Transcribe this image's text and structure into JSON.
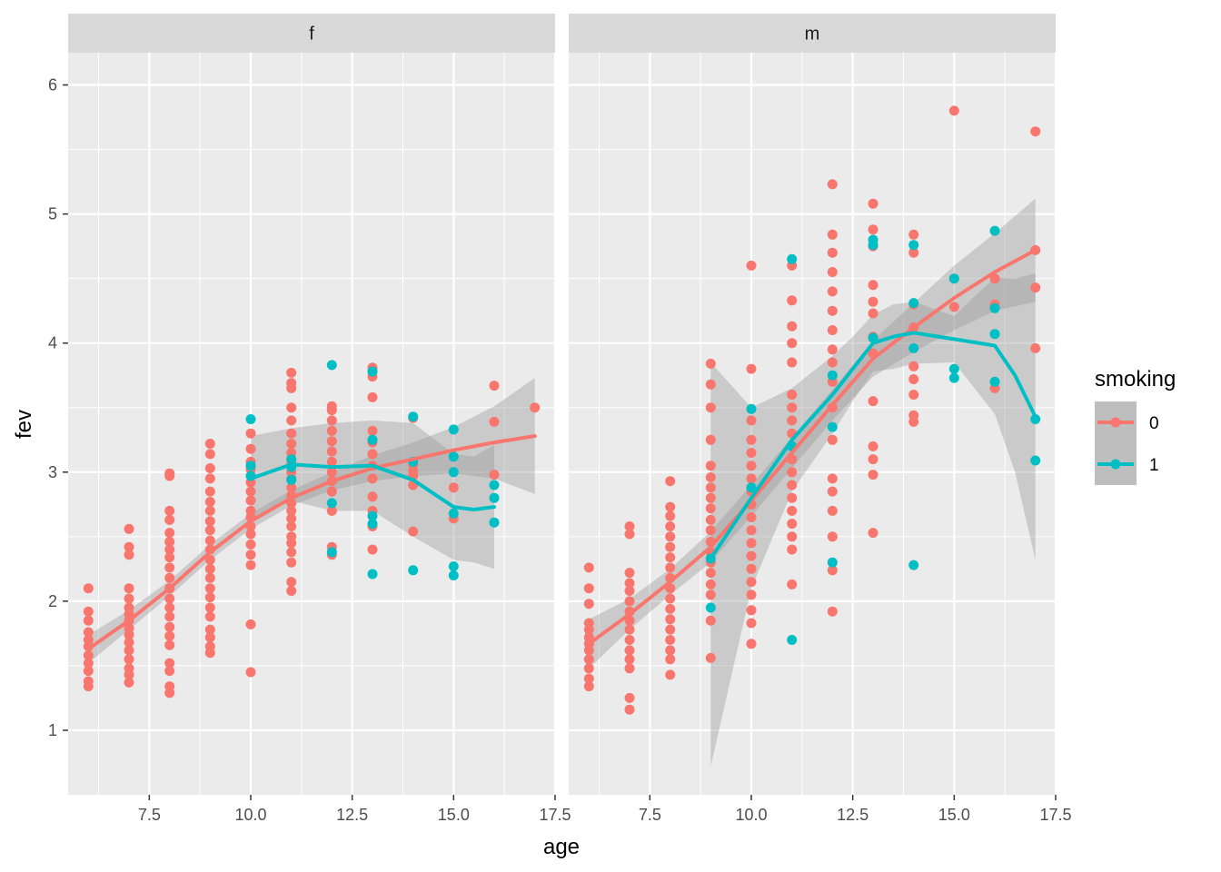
{
  "chart_data": {
    "type": "scatter",
    "overlay": "loess smooth with confidence band",
    "xlabel": "age",
    "ylabel": "fev",
    "xlim": [
      5.5,
      17.5
    ],
    "ylim": [
      0.5,
      6.25
    ],
    "xticks": [
      7.5,
      10.0,
      12.5,
      15.0,
      17.5
    ],
    "xtick_labels": [
      "7.5",
      "10.0",
      "12.5",
      "15.0",
      "17.5"
    ],
    "yticks": [
      1,
      2,
      3,
      4,
      5,
      6
    ],
    "ytick_labels": [
      "1",
      "2",
      "3",
      "4",
      "5",
      "6"
    ],
    "grid": true,
    "legend": {
      "title": "smoking",
      "placement": "right",
      "entries": [
        {
          "label": "0",
          "color": "#F8766D"
        },
        {
          "label": "1",
          "color": "#00BFC4"
        }
      ]
    },
    "series_colors": {
      "0": "#F8766D",
      "1": "#00BFC4"
    },
    "panels": [
      {
        "strip": "f",
        "points": [
          {
            "x": 6,
            "smoking": "0",
            "y": [
              1.34,
              1.38,
              1.46,
              1.52,
              1.58,
              1.65,
              1.7,
              1.76,
              1.85,
              1.92,
              2.1
            ]
          },
          {
            "x": 7,
            "smoking": "0",
            "y": [
              1.37,
              1.43,
              1.48,
              1.55,
              1.62,
              1.68,
              1.74,
              1.79,
              1.85,
              1.9,
              1.95,
              2.02,
              2.1,
              2.36,
              2.42,
              2.56
            ]
          },
          {
            "x": 8,
            "smoking": "0",
            "y": [
              1.29,
              1.34,
              1.46,
              1.52,
              1.66,
              1.73,
              1.8,
              1.88,
              1.95,
              2.02,
              2.1,
              2.18,
              2.26,
              2.34,
              2.4,
              2.46,
              2.53,
              2.63,
              2.7,
              2.97,
              2.99
            ]
          },
          {
            "x": 9,
            "smoking": "0",
            "y": [
              1.6,
              1.65,
              1.72,
              1.78,
              1.88,
              1.95,
              2.03,
              2.1,
              2.18,
              2.25,
              2.32,
              2.4,
              2.47,
              2.55,
              2.62,
              2.7,
              2.77,
              2.85,
              2.95,
              3.03,
              3.14,
              3.22
            ]
          },
          {
            "x": 10,
            "smoking": "0",
            "y": [
              1.45,
              1.82,
              2.28,
              2.36,
              2.44,
              2.52,
              2.58,
              2.65,
              2.7,
              2.78,
              2.85,
              2.92,
              3.02,
              3.08,
              3.18,
              3.3
            ]
          },
          {
            "x": 10,
            "smoking": "1",
            "y": [
              2.97,
              3.05,
              3.41
            ]
          },
          {
            "x": 11,
            "smoking": "0",
            "y": [
              2.08,
              2.15,
              2.3,
              2.38,
              2.45,
              2.5,
              2.58,
              2.64,
              2.7,
              2.76,
              2.82,
              2.88,
              2.95,
              3.0,
              3.08,
              3.15,
              3.22,
              3.3,
              3.4,
              3.5,
              3.65,
              3.69,
              3.77
            ]
          },
          {
            "x": 11,
            "smoking": "1",
            "y": [
              2.94,
              3.04,
              3.1
            ]
          },
          {
            "x": 12,
            "smoking": "0",
            "y": [
              2.36,
              2.42,
              2.7,
              2.85,
              2.93,
              3.0,
              3.08,
              3.16,
              3.24,
              3.32,
              3.4,
              3.48,
              3.51
            ]
          },
          {
            "x": 12,
            "smoking": "1",
            "y": [
              2.38,
              2.76,
              3.83
            ]
          },
          {
            "x": 13,
            "smoking": "0",
            "y": [
              2.4,
              2.58,
              2.7,
              2.81,
              2.95,
              3.05,
              3.14,
              3.23,
              3.32,
              3.58,
              3.74,
              3.81
            ]
          },
          {
            "x": 13,
            "smoking": "1",
            "y": [
              2.21,
              2.6,
              2.66,
              3.25,
              3.78
            ]
          },
          {
            "x": 14,
            "smoking": "0",
            "y": [
              2.54,
              2.9,
              2.97,
              3.01,
              3.06,
              3.42
            ]
          },
          {
            "x": 14,
            "smoking": "1",
            "y": [
              2.24,
              3.08,
              3.43
            ]
          },
          {
            "x": 15,
            "smoking": "0",
            "y": [
              2.64,
              2.88
            ]
          },
          {
            "x": 15,
            "smoking": "1",
            "y": [
              2.2,
              2.27,
              2.68,
              3.0,
              3.12,
              3.33
            ]
          },
          {
            "x": 16,
            "smoking": "0",
            "y": [
              2.98,
              3.39,
              3.67
            ]
          },
          {
            "x": 16,
            "smoking": "1",
            "y": [
              2.61,
              2.8,
              2.9
            ]
          },
          {
            "x": 17,
            "smoking": "0",
            "y": [
              3.5
            ]
          }
        ],
        "smooth": [
          {
            "smoking": "0",
            "x": [
              6,
              7,
              8,
              9,
              10,
              11,
              12,
              13,
              14,
              15,
              16,
              17
            ],
            "y": [
              1.63,
              1.85,
              2.1,
              2.38,
              2.62,
              2.8,
              2.93,
              3.03,
              3.1,
              3.17,
              3.23,
              3.28
            ],
            "lower": [
              1.52,
              1.78,
              2.04,
              2.32,
              2.56,
              2.74,
              2.86,
              2.93,
              2.97,
              2.99,
              2.95,
              2.83
            ],
            "upper": [
              1.74,
              1.93,
              2.16,
              2.44,
              2.68,
              2.86,
              3.0,
              3.13,
              3.23,
              3.35,
              3.51,
              3.73
            ]
          },
          {
            "smoking": "1",
            "x": [
              10,
              11,
              12,
              13,
              14,
              15,
              15.5,
              16
            ],
            "y": [
              2.95,
              3.06,
              3.04,
              3.05,
              2.94,
              2.73,
              2.71,
              2.73
            ],
            "lower": [
              2.62,
              2.78,
              2.7,
              2.7,
              2.5,
              2.32,
              2.3,
              2.25
            ],
            "upper": [
              3.28,
              3.34,
              3.38,
              3.4,
              3.38,
              3.14,
              3.12,
              3.21
            ]
          }
        ]
      },
      {
        "strip": "m",
        "points": [
          {
            "x": 6,
            "smoking": "0",
            "y": [
              1.34,
              1.4,
              1.48,
              1.55,
              1.62,
              1.67,
              1.72,
              1.78,
              1.83,
              1.98,
              2.1,
              2.26
            ]
          },
          {
            "x": 7,
            "smoking": "0",
            "y": [
              1.16,
              1.25,
              1.48,
              1.55,
              1.62,
              1.7,
              1.78,
              1.85,
              1.92,
              2.0,
              2.08,
              2.14,
              2.22,
              2.52,
              2.58
            ]
          },
          {
            "x": 8,
            "smoking": "0",
            "y": [
              1.43,
              1.55,
              1.62,
              1.7,
              1.78,
              1.86,
              1.94,
              2.02,
              2.1,
              2.18,
              2.26,
              2.34,
              2.42,
              2.5,
              2.58,
              2.66,
              2.73,
              2.93
            ]
          },
          {
            "x": 9,
            "smoking": "0",
            "y": [
              1.56,
              1.85,
              2.05,
              2.13,
              2.22,
              2.3,
              2.38,
              2.46,
              2.55,
              2.63,
              2.72,
              2.8,
              2.88,
              2.96,
              3.05,
              3.25,
              3.5,
              3.68,
              3.84
            ]
          },
          {
            "x": 9,
            "smoking": "1",
            "y": [
              1.95,
              2.33
            ]
          },
          {
            "x": 10,
            "smoking": "0",
            "y": [
              1.67,
              1.83,
              1.93,
              2.05,
              2.15,
              2.25,
              2.35,
              2.45,
              2.55,
              2.65,
              2.75,
              2.85,
              2.95,
              3.05,
              3.15,
              3.25,
              3.4,
              3.8,
              4.6
            ]
          },
          {
            "x": 10,
            "smoking": "1",
            "y": [
              2.88,
              3.49
            ]
          },
          {
            "x": 11,
            "smoking": "0",
            "y": [
              2.13,
              2.4,
              2.5,
              2.6,
              2.7,
              2.8,
              2.9,
              3.0,
              3.1,
              3.2,
              3.3,
              3.4,
              3.5,
              3.6,
              3.85,
              4.0,
              4.13,
              4.33,
              4.6
            ]
          },
          {
            "x": 11,
            "smoking": "1",
            "y": [
              1.7,
              3.2,
              4.65
            ]
          },
          {
            "x": 12,
            "smoking": "0",
            "y": [
              1.92,
              2.24,
              2.5,
              2.7,
              2.85,
              2.95,
              3.25,
              3.5,
              3.7,
              3.85,
              3.95,
              4.1,
              4.25,
              4.4,
              4.55,
              4.7,
              4.84,
              5.23
            ]
          },
          {
            "x": 12,
            "smoking": "1",
            "y": [
              2.3,
              3.35,
              3.75
            ]
          },
          {
            "x": 13,
            "smoking": "0",
            "y": [
              2.53,
              2.98,
              3.1,
              3.2,
              3.55,
              3.92,
              4.05,
              4.23,
              4.32,
              4.45,
              4.75,
              4.88,
              5.08
            ]
          },
          {
            "x": 13,
            "smoking": "1",
            "y": [
              4.04,
              4.76,
              4.8
            ]
          },
          {
            "x": 14,
            "smoking": "0",
            "y": [
              3.39,
              3.44,
              3.6,
              3.72,
              3.82,
              4.12,
              4.3,
              4.7,
              4.84
            ]
          },
          {
            "x": 14,
            "smoking": "1",
            "y": [
              2.28,
              3.96,
              4.31,
              4.76
            ]
          },
          {
            "x": 15,
            "smoking": "0",
            "y": [
              4.28,
              4.5,
              5.8
            ]
          },
          {
            "x": 15,
            "smoking": "1",
            "y": [
              3.73,
              3.8,
              4.5
            ]
          },
          {
            "x": 16,
            "smoking": "0",
            "y": [
              3.65,
              4.3,
              4.5
            ]
          },
          {
            "x": 16,
            "smoking": "1",
            "y": [
              3.7,
              4.07,
              4.27,
              4.87
            ]
          },
          {
            "x": 17,
            "smoking": "0",
            "y": [
              3.96,
              4.43,
              4.72,
              5.64
            ]
          },
          {
            "x": 17,
            "smoking": "1",
            "y": [
              3.09,
              3.41
            ]
          }
        ],
        "smooth": [
          {
            "smoking": "0",
            "x": [
              6,
              7,
              8,
              9,
              10,
              11,
              12,
              13,
              14,
              15,
              16,
              17
            ],
            "y": [
              1.67,
              1.9,
              2.15,
              2.42,
              2.78,
              3.15,
              3.52,
              3.88,
              4.12,
              4.35,
              4.55,
              4.72
            ],
            "lower": [
              1.48,
              1.78,
              2.05,
              2.3,
              2.66,
              3.03,
              3.4,
              3.74,
              3.93,
              4.1,
              4.25,
              4.32
            ],
            "upper": [
              1.86,
              2.02,
              2.25,
              2.54,
              2.9,
              3.27,
              3.64,
              4.02,
              4.31,
              4.6,
              4.85,
              5.12
            ]
          },
          {
            "smoking": "1",
            "x": [
              9,
              10,
              11,
              12,
              12.5,
              13,
              13.5,
              14,
              15,
              16,
              16.5,
              17
            ],
            "y": [
              2.33,
              2.8,
              3.25,
              3.6,
              3.8,
              4.0,
              4.05,
              4.08,
              4.03,
              3.98,
              3.75,
              3.43
            ],
            "lower": [
              0.72,
              2.1,
              2.85,
              3.3,
              3.55,
              3.78,
              3.8,
              3.84,
              3.85,
              3.45,
              3.0,
              2.32
            ],
            "upper": [
              3.85,
              3.5,
              3.65,
              3.9,
              4.05,
              4.22,
              4.3,
              4.32,
              4.21,
              4.51,
              4.5,
              4.54
            ]
          }
        ]
      }
    ]
  }
}
